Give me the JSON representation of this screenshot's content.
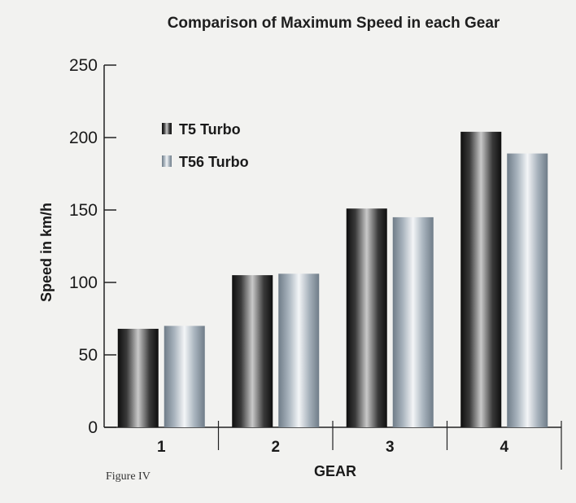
{
  "chart_data": {
    "type": "bar",
    "title": "Comparison of Maximum Speed in each Gear",
    "xlabel": "GEAR",
    "ylabel": "Speed in km/h",
    "categories": [
      "1",
      "2",
      "3",
      "4"
    ],
    "series": [
      {
        "name": "T5 Turbo",
        "values": [
          68,
          105,
          151,
          204
        ],
        "color": "#2a2a2a"
      },
      {
        "name": "T56 Turbo",
        "values": [
          70,
          106,
          145,
          189
        ],
        "color": "#8e9aa6"
      }
    ],
    "ylim": [
      0,
      250
    ],
    "yticks": [
      0,
      50,
      100,
      150,
      200,
      250
    ],
    "legend_position": "top-left",
    "grid": false
  },
  "caption": "Figure IV"
}
